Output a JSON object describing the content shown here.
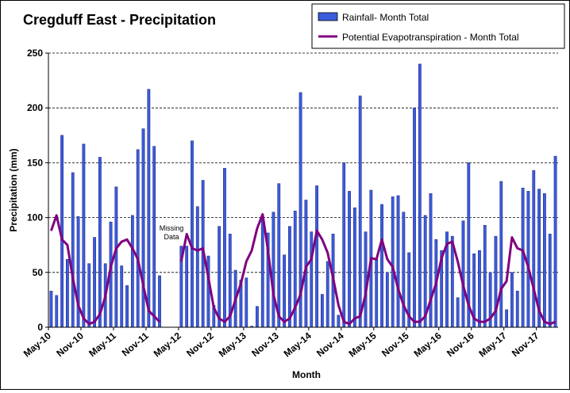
{
  "chart_data": {
    "type": "bar",
    "title": "Cregduff East - Precipitation",
    "xlabel": "Month",
    "ylabel": "Precipitation (mm)",
    "ylim": [
      0,
      250
    ],
    "yticks": [
      0,
      50,
      100,
      150,
      200,
      250
    ],
    "grid": true,
    "legend_position": "top-right",
    "x_start": "May-10",
    "x_tick_labels": [
      "May-10",
      "Nov-10",
      "May-11",
      "Nov-11",
      "May-12",
      "Nov-12",
      "May-13",
      "Nov-13",
      "May-14",
      "Nov-14",
      "May-15",
      "Nov-15",
      "May-16",
      "Nov-16",
      "May-17",
      "Nov-17"
    ],
    "annotation": {
      "text_line1": "Missing",
      "text_line2": "Data",
      "month": "Apr-12"
    },
    "series": [
      {
        "name": "Rainfall- Month Total",
        "type": "bar",
        "color": "#3b5cdc",
        "values": [
          33,
          29,
          175,
          62,
          141,
          101,
          167,
          58,
          82,
          155,
          58,
          96,
          128,
          56,
          38,
          102,
          162,
          181,
          217,
          165,
          47,
          null,
          null,
          null,
          74,
          74,
          170,
          110,
          134,
          65,
          20,
          92,
          145,
          85,
          52,
          43,
          45,
          1,
          19,
          100,
          86,
          105,
          131,
          66,
          92,
          106,
          214,
          116,
          87,
          129,
          30,
          60,
          85,
          11,
          150,
          124,
          109,
          211,
          87,
          125,
          62,
          112,
          50,
          119,
          120,
          105,
          68,
          200,
          240,
          102,
          122,
          80,
          70,
          87,
          83,
          27,
          97,
          150,
          67,
          70,
          93,
          50,
          83,
          133,
          16,
          50,
          33,
          127,
          124,
          143,
          126,
          122,
          85,
          156
        ]
      },
      {
        "name": "Potential Evapotranspiration - Month Total",
        "type": "line",
        "color": "#800080",
        "values": [
          88,
          102,
          80,
          75,
          45,
          20,
          8,
          3,
          5,
          12,
          28,
          55,
          72,
          78,
          80,
          72,
          62,
          38,
          15,
          10,
          5,
          null,
          null,
          null,
          60,
          85,
          72,
          70,
          72,
          45,
          18,
          8,
          5,
          10,
          25,
          40,
          60,
          70,
          90,
          103,
          70,
          30,
          10,
          5,
          8,
          18,
          30,
          55,
          62,
          88,
          80,
          68,
          45,
          20,
          5,
          3,
          8,
          10,
          30,
          63,
          62,
          80,
          62,
          55,
          35,
          20,
          10,
          5,
          5,
          10,
          25,
          40,
          63,
          76,
          78,
          60,
          38,
          20,
          8,
          5,
          5,
          8,
          15,
          35,
          42,
          82,
          72,
          70,
          55,
          35,
          15,
          5,
          3,
          5
        ]
      }
    ]
  }
}
